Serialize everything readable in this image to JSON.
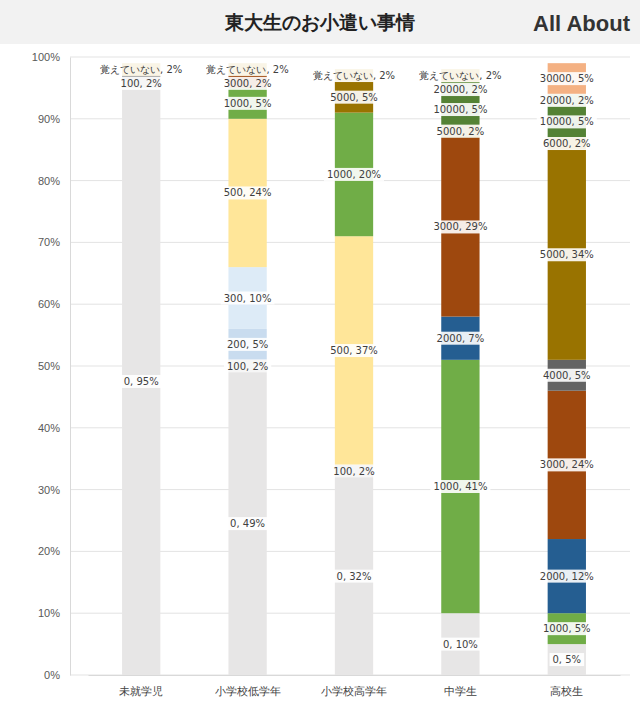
{
  "chart_data": {
    "type": "bar",
    "title": "東大生のお小遣い事情",
    "logo": "All About",
    "categories": [
      "未就学児",
      "小学校低学年",
      "小学校高学年",
      "中学生",
      "高校生"
    ],
    "stacked": true,
    "data_labels": true,
    "grid": true,
    "ylim": [
      0,
      100
    ],
    "yticks": [
      {
        "value": 0,
        "label": "0%"
      },
      {
        "value": 10,
        "label": "10%"
      },
      {
        "value": 20,
        "label": "20%"
      },
      {
        "value": 30,
        "label": "30%"
      },
      {
        "value": 40,
        "label": "40%"
      },
      {
        "value": 50,
        "label": "50%"
      },
      {
        "value": 60,
        "label": "60%"
      },
      {
        "value": 70,
        "label": "70%"
      },
      {
        "value": 80,
        "label": "80%"
      },
      {
        "value": 90,
        "label": "90%"
      },
      {
        "value": 100,
        "label": "100%"
      }
    ],
    "series": [
      {
        "name": "0",
        "color": "#e7e6e6",
        "values": [
          95,
          49,
          32,
          10,
          5
        ],
        "value_labels": [
          "0, 95%",
          "0, 49%",
          "0, 32%",
          "0, 10%",
          "0, 5%"
        ]
      },
      {
        "name": "100",
        "color": "#a6a6a6",
        "values": [
          2,
          2,
          2,
          null,
          null
        ],
        "value_labels": [
          "100, 2%",
          "100, 2%",
          "100, 2%",
          null,
          null
        ]
      },
      {
        "name": "200",
        "color": "#c9dcef",
        "values": [
          null,
          5,
          null,
          null,
          null
        ],
        "value_labels": [
          null,
          "200, 5%",
          null,
          null,
          null
        ]
      },
      {
        "name": "300",
        "color": "#ddebf7",
        "values": [
          null,
          10,
          null,
          null,
          null
        ],
        "value_labels": [
          null,
          "300, 10%",
          null,
          null,
          null
        ]
      },
      {
        "name": "500",
        "color": "#ffe699",
        "values": [
          null,
          24,
          37,
          null,
          null
        ],
        "value_labels": [
          null,
          "500, 24%",
          "500, 37%",
          null,
          null
        ]
      },
      {
        "name": "1000",
        "color": "#70ad47",
        "values": [
          null,
          5,
          20,
          41,
          5
        ],
        "value_labels": [
          null,
          "1000, 5%",
          "1000, 20%",
          "1000, 41%",
          "1000, 5%"
        ]
      },
      {
        "name": "2000",
        "color": "#255e91",
        "values": [
          null,
          null,
          null,
          7,
          12
        ],
        "value_labels": [
          null,
          null,
          null,
          "2000, 7%",
          "2000, 12%"
        ]
      },
      {
        "name": "3000",
        "color": "#9e480e",
        "values": [
          null,
          2,
          null,
          29,
          24
        ],
        "value_labels": [
          null,
          "3000, 2%",
          null,
          "3000, 29%",
          "3000, 24%"
        ]
      },
      {
        "name": "4000",
        "color": "#636363",
        "values": [
          null,
          null,
          null,
          null,
          5
        ],
        "value_labels": [
          null,
          null,
          null,
          null,
          "4000, 5%"
        ]
      },
      {
        "name": "5000",
        "color": "#997300",
        "values": [
          null,
          null,
          5,
          2,
          34
        ],
        "value_labels": [
          null,
          null,
          "5000, 5%",
          "5000, 2%",
          "5000, 34%"
        ]
      },
      {
        "name": "6000",
        "color": "#b38600",
        "values": [
          null,
          null,
          null,
          null,
          2
        ],
        "value_labels": [
          null,
          null,
          null,
          null,
          "6000, 2%"
        ]
      },
      {
        "name": "10000",
        "color": "#548235",
        "values": [
          null,
          null,
          null,
          5,
          5
        ],
        "value_labels": [
          null,
          null,
          null,
          "10000, 5%",
          "10000, 5%"
        ]
      },
      {
        "name": "20000",
        "color": "#7fa35f",
        "values": [
          null,
          null,
          null,
          2,
          2
        ],
        "value_labels": [
          null,
          null,
          null,
          "20000, 2%",
          "20000, 2%"
        ]
      },
      {
        "name": "30000",
        "color": "#f4b183",
        "values": [
          null,
          null,
          null,
          null,
          5
        ],
        "value_labels": [
          null,
          null,
          null,
          null,
          "30000, 5%"
        ]
      },
      {
        "name": "覚えていない",
        "color": "#bf9000",
        "values": [
          2,
          2,
          2,
          2,
          null
        ],
        "value_labels": [
          "覚えていない, 2%",
          "覚えていない, 2%",
          "覚えていない, 2%",
          "覚えていない, 2%",
          null
        ]
      }
    ]
  }
}
